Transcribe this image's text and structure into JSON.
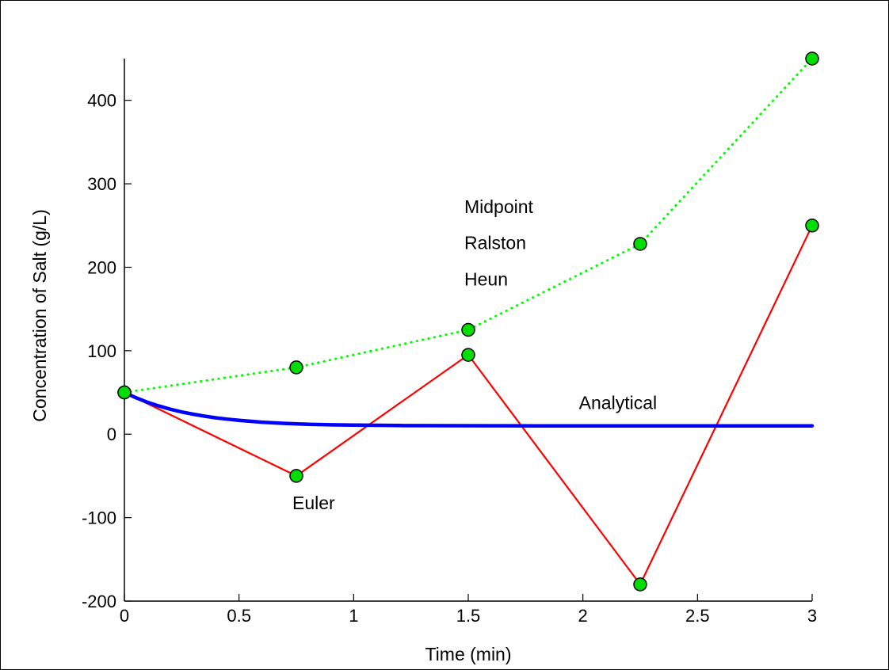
{
  "chart_data": {
    "type": "line",
    "xlabel": "Time (min)",
    "ylabel": "Concentration of Salt (g/L)",
    "xlim": [
      0,
      3
    ],
    "ylim": [
      -200,
      450
    ],
    "x_ticks": [
      0,
      0.5,
      1,
      1.5,
      2,
      2.5,
      3
    ],
    "x_tick_labels": [
      "0",
      "0.5",
      "1",
      "1.5",
      "2",
      "2.5",
      "3"
    ],
    "y_ticks": [
      -200,
      -100,
      0,
      100,
      200,
      300,
      400
    ],
    "y_tick_labels": [
      "-200",
      "-100",
      "0",
      "100",
      "200",
      "300",
      "400"
    ],
    "grid": false,
    "series": [
      {
        "key": "upper",
        "style": "dotted",
        "color": "#00ff00",
        "marker_color": "#00dd00",
        "x": [
          0,
          0.75,
          1.5,
          2.25,
          3
        ],
        "values": [
          50,
          80,
          125,
          228,
          450
        ]
      },
      {
        "key": "euler",
        "style": "solid",
        "color": "#ff0000",
        "marker_color": "#00dd00",
        "x": [
          0,
          0.75,
          1.5,
          2.25,
          3
        ],
        "values": [
          50,
          -50,
          95,
          -180,
          250
        ]
      },
      {
        "key": "analytical",
        "style": "solid-thick",
        "color": "#0000ff",
        "x": [
          0,
          0.05,
          0.1,
          0.15,
          0.2,
          0.25,
          0.3,
          0.35,
          0.4,
          0.45,
          0.5,
          0.6,
          0.7,
          0.8,
          0.9,
          1.0,
          1.2,
          1.4,
          1.6,
          1.8,
          2.0,
          2.2,
          2.4,
          2.6,
          2.8,
          3.0
        ],
        "values": [
          50,
          43.7,
          38.3,
          33.8,
          29.9,
          26.6,
          23.9,
          21.6,
          19.6,
          18.0,
          16.6,
          14.4,
          12.9,
          11.9,
          11.2,
          10.8,
          10.4,
          10.2,
          10.1,
          10.0,
          10.0,
          10.0,
          10.0,
          10.0,
          10.0,
          10.0
        ]
      }
    ],
    "annotations": [
      {
        "key": "midpoint",
        "text": "Midpoint",
        "x": 1.5,
        "y": 265
      },
      {
        "key": "ralston",
        "text": "Ralston",
        "x": 1.5,
        "y": 222
      },
      {
        "key": "heun",
        "text": "Heun",
        "x": 1.5,
        "y": 178
      },
      {
        "key": "analytical",
        "text": "Analytical",
        "x": 2.0,
        "y": 30
      },
      {
        "key": "euler",
        "text": "Euler",
        "x": 0.75,
        "y": -90
      }
    ]
  }
}
